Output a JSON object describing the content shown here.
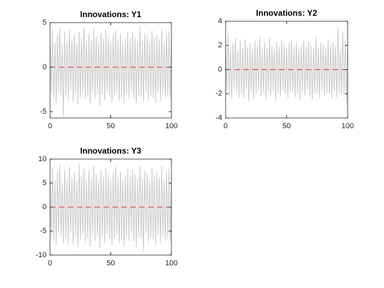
{
  "chart_data": [
    {
      "type": "line",
      "title": "Innovations: Y1",
      "color": "#c8c8c8",
      "x": [
        0,
        1,
        2,
        3,
        4,
        5,
        6,
        7,
        8,
        9,
        10,
        11,
        12,
        13,
        14,
        15,
        16,
        17,
        18,
        19,
        20,
        21,
        22,
        23,
        24,
        25,
        26,
        27,
        28,
        29,
        30,
        31,
        32,
        33,
        34,
        35,
        36,
        37,
        38,
        39,
        40,
        41,
        42,
        43,
        44,
        45,
        46,
        47,
        48,
        49,
        50,
        51,
        52,
        53,
        54,
        55,
        56,
        57,
        58,
        59,
        60,
        61,
        62,
        63,
        64,
        65,
        66,
        67,
        68,
        69,
        70,
        71,
        72,
        73,
        74,
        75,
        76,
        77,
        78,
        79,
        80,
        81,
        82,
        83,
        84,
        85,
        86,
        87,
        88,
        89,
        90,
        91,
        92,
        93,
        94,
        95,
        96,
        97,
        98,
        99,
        100
      ],
      "values": [
        3.2,
        -2.9,
        4.1,
        -3.5,
        2.8,
        -4.0,
        3.6,
        -2.7,
        4.4,
        -3.1,
        2.5,
        -5.4,
        3.9,
        -3.3,
        2.9,
        -3.8,
        4.2,
        -2.6,
        3.1,
        -3.9,
        3.7,
        -3.0,
        2.7,
        -4.2,
        4.0,
        -3.4,
        3.3,
        -2.8,
        4.5,
        -3.6,
        2.9,
        -3.2,
        3.8,
        -4.1,
        3.0,
        -2.9,
        4.3,
        -3.5,
        3.4,
        -3.0,
        2.8,
        -4.3,
        3.9,
        -3.1,
        3.2,
        -3.7,
        4.1,
        -2.8,
        3.5,
        -3.3,
        2.9,
        -4.0,
        3.6,
        -3.2,
        4.2,
        -2.9,
        3.1,
        -3.8,
        3.7,
        -3.4,
        2.8,
        -4.1,
        3.3,
        -3.0,
        4.0,
        -3.5,
        3.2,
        -2.7,
        3.9,
        -3.6,
        3.4,
        -4.2,
        2.9,
        -3.1,
        4.6,
        -3.3,
        3.0,
        -3.9,
        3.8,
        -2.8,
        3.5,
        -3.7,
        2.9,
        -3.2,
        4.1,
        -3.4,
        3.3,
        -4.0,
        3.6,
        -2.9,
        3.1,
        -3.8,
        4.3,
        -3.1,
        2.8,
        -3.5,
        3.7,
        -3.3,
        4.0,
        -3.6,
        3.2
      ],
      "hline": 0,
      "hline_color": "#e03030",
      "hline_dashed": true,
      "xlim": [
        0,
        100
      ],
      "xticks": [
        0,
        50,
        100
      ],
      "ylim": [
        -5.7,
        5
      ],
      "yticks": [
        -5,
        0,
        5
      ]
    },
    {
      "type": "line",
      "title": "Innovations: Y2",
      "color": "#c8c8c8",
      "x": [
        0,
        1,
        2,
        3,
        4,
        5,
        6,
        7,
        8,
        9,
        10,
        11,
        12,
        13,
        14,
        15,
        16,
        17,
        18,
        19,
        20,
        21,
        22,
        23,
        24,
        25,
        26,
        27,
        28,
        29,
        30,
        31,
        32,
        33,
        34,
        35,
        36,
        37,
        38,
        39,
        40,
        41,
        42,
        43,
        44,
        45,
        46,
        47,
        48,
        49,
        50,
        51,
        52,
        53,
        54,
        55,
        56,
        57,
        58,
        59,
        60,
        61,
        62,
        63,
        64,
        65,
        66,
        67,
        68,
        69,
        70,
        71,
        72,
        73,
        74,
        75,
        76,
        77,
        78,
        79,
        80,
        81,
        82,
        83,
        84,
        85,
        86,
        87,
        88,
        89,
        90,
        91,
        92,
        93,
        94,
        95,
        96,
        97,
        98,
        99,
        100
      ],
      "values": [
        2.0,
        -1.8,
        3.0,
        -2.2,
        1.7,
        -2.4,
        2.2,
        -1.6,
        2.6,
        -1.9,
        1.6,
        -2.3,
        2.4,
        -2.0,
        1.8,
        -2.3,
        2.5,
        -1.6,
        1.9,
        -2.6,
        2.2,
        -1.8,
        1.7,
        -2.5,
        2.4,
        -2.0,
        2.0,
        -1.7,
        2.7,
        -2.2,
        1.8,
        -1.9,
        2.3,
        -2.5,
        1.8,
        -1.8,
        2.6,
        -2.1,
        2.0,
        -1.8,
        1.7,
        -2.6,
        2.3,
        -1.9,
        1.9,
        -2.2,
        2.5,
        -1.7,
        2.1,
        -2.0,
        1.8,
        -2.4,
        2.2,
        -1.9,
        2.5,
        -1.8,
        1.9,
        -2.3,
        2.2,
        -2.0,
        1.7,
        -2.5,
        2.0,
        -1.8,
        2.4,
        -2.1,
        1.9,
        -1.6,
        2.3,
        -2.2,
        2.0,
        -2.5,
        1.8,
        -1.9,
        2.7,
        -2.0,
        1.8,
        -2.3,
        2.3,
        -1.7,
        2.1,
        -2.2,
        1.8,
        -1.9,
        2.5,
        -2.0,
        2.0,
        -2.4,
        2.2,
        -1.8,
        1.9,
        -2.3,
        3.5,
        -1.9,
        1.7,
        -2.1,
        3.1,
        -2.0,
        2.4,
        -2.8,
        2.0
      ],
      "hline": 0,
      "hline_color": "#e03030",
      "hline_dashed": true,
      "xlim": [
        0,
        100
      ],
      "xticks": [
        0,
        50,
        100
      ],
      "ylim": [
        -4,
        4
      ],
      "yticks": [
        -4,
        -2,
        0,
        2,
        4
      ]
    },
    {
      "type": "line",
      "title": "Innovations: Y3",
      "color": "#c8c8c8",
      "x": [
        0,
        1,
        2,
        3,
        4,
        5,
        6,
        7,
        8,
        9,
        10,
        11,
        12,
        13,
        14,
        15,
        16,
        17,
        18,
        19,
        20,
        21,
        22,
        23,
        24,
        25,
        26,
        27,
        28,
        29,
        30,
        31,
        32,
        33,
        34,
        35,
        36,
        37,
        38,
        39,
        40,
        41,
        42,
        43,
        44,
        45,
        46,
        47,
        48,
        49,
        50,
        51,
        52,
        53,
        54,
        55,
        56,
        57,
        58,
        59,
        60,
        61,
        62,
        63,
        64,
        65,
        66,
        67,
        68,
        69,
        70,
        71,
        72,
        73,
        74,
        75,
        76,
        77,
        78,
        79,
        80,
        81,
        82,
        83,
        84,
        85,
        86,
        87,
        88,
        89,
        90,
        91,
        92,
        93,
        94,
        95,
        96,
        97,
        98,
        99,
        100
      ],
      "values": [
        6.4,
        -5.8,
        8.2,
        -7.0,
        5.6,
        -8.0,
        7.2,
        -5.4,
        8.8,
        -6.2,
        5.0,
        -7.6,
        7.8,
        -6.6,
        5.8,
        -7.6,
        8.4,
        -5.2,
        6.2,
        -7.8,
        7.4,
        -6.0,
        5.4,
        -8.4,
        9.0,
        -6.8,
        6.6,
        -5.6,
        8.0,
        -7.2,
        5.8,
        -6.4,
        7.6,
        -8.2,
        6.0,
        -5.8,
        8.6,
        -7.0,
        6.8,
        -6.0,
        5.6,
        -8.6,
        7.8,
        -6.2,
        6.4,
        -7.4,
        8.2,
        -5.6,
        7.0,
        -6.6,
        5.8,
        -8.0,
        7.2,
        -6.4,
        8.4,
        -5.8,
        6.2,
        -7.6,
        7.4,
        -6.8,
        5.6,
        -8.2,
        6.6,
        -6.0,
        8.0,
        -7.0,
        6.4,
        -5.4,
        7.8,
        -7.2,
        6.8,
        -8.4,
        5.8,
        -6.2,
        8.6,
        -6.6,
        6.0,
        -9.2,
        7.6,
        -5.6,
        7.0,
        -7.4,
        5.8,
        -6.4,
        8.2,
        -6.8,
        6.6,
        -8.0,
        7.2,
        -5.8,
        6.2,
        -7.6,
        8.6,
        -6.2,
        5.6,
        -7.0,
        7.4,
        -6.6,
        8.0,
        -7.2,
        6.4
      ],
      "hline": 0,
      "hline_color": "#e03030",
      "hline_dashed": true,
      "xlim": [
        0,
        100
      ],
      "xticks": [
        0,
        50,
        100
      ],
      "ylim": [
        -10,
        10
      ],
      "yticks": [
        -10,
        -5,
        0,
        5,
        10
      ]
    }
  ]
}
